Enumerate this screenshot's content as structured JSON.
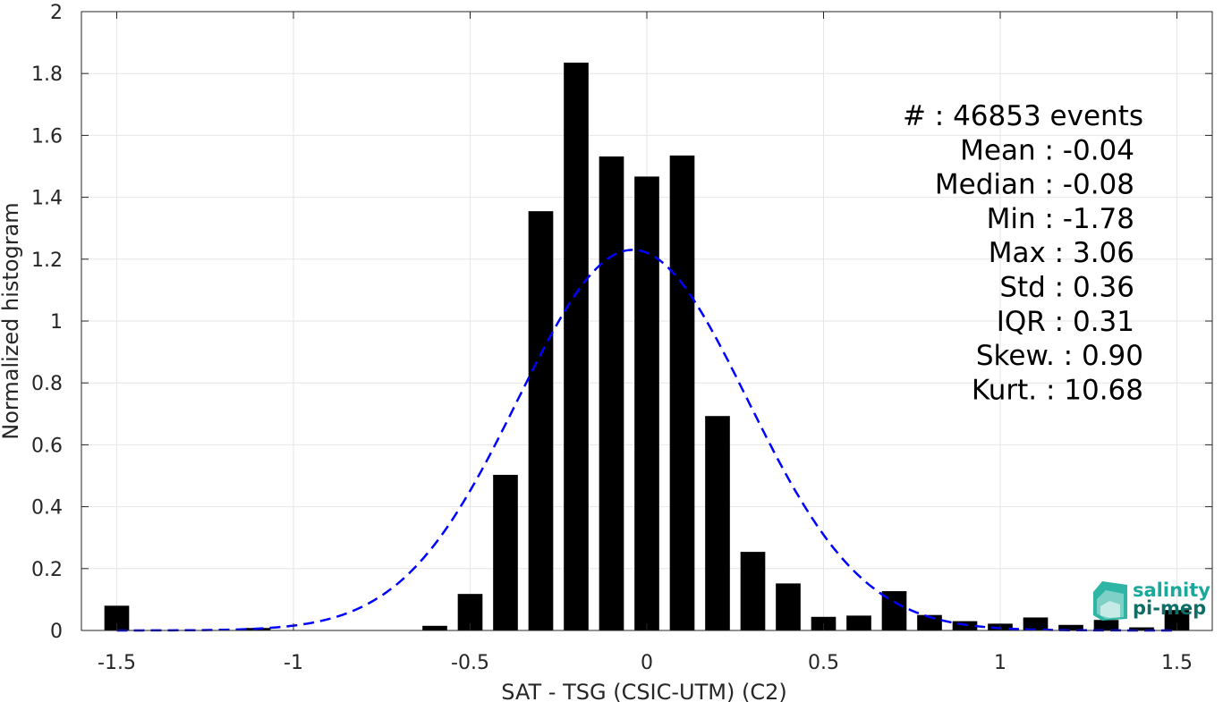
{
  "chart_data": {
    "type": "bar",
    "xlabel": "SAT - TSG (CSIC-UTM) (C2)",
    "ylabel": "Normalized histogram",
    "xlim": [
      -1.6,
      1.6
    ],
    "ylim": [
      0,
      2
    ],
    "grid": true,
    "x_ticks": [
      -1.5,
      -1,
      -0.5,
      0,
      0.5,
      1,
      1.5
    ],
    "x_tick_labels": [
      "-1.5",
      "-1",
      "-0.5",
      "0",
      "0.5",
      "1",
      "1.5"
    ],
    "y_ticks": [
      0,
      0.2,
      0.4,
      0.6,
      0.8,
      1,
      1.2,
      1.4,
      1.6,
      1.8,
      2
    ],
    "y_tick_labels": [
      "0",
      "0.2",
      "0.4",
      "0.6",
      "0.8",
      "1",
      "1.2",
      "1.4",
      "1.6",
      "1.8",
      "2"
    ],
    "bar_width": 0.07,
    "bars": [
      {
        "x": -1.5,
        "y": 0.08
      },
      {
        "x": -1.4,
        "y": 0.0
      },
      {
        "x": -1.3,
        "y": 0.0
      },
      {
        "x": -1.2,
        "y": 0.0
      },
      {
        "x": -1.1,
        "y": 0.008
      },
      {
        "x": -1.0,
        "y": 0.0
      },
      {
        "x": -0.9,
        "y": 0.0
      },
      {
        "x": -0.8,
        "y": 0.0
      },
      {
        "x": -0.7,
        "y": 0.0
      },
      {
        "x": -0.6,
        "y": 0.015
      },
      {
        "x": -0.5,
        "y": 0.118
      },
      {
        "x": -0.4,
        "y": 0.503
      },
      {
        "x": -0.3,
        "y": 1.355
      },
      {
        "x": -0.2,
        "y": 1.835
      },
      {
        "x": -0.1,
        "y": 1.532
      },
      {
        "x": 0.0,
        "y": 1.467
      },
      {
        "x": 0.1,
        "y": 1.535
      },
      {
        "x": 0.2,
        "y": 0.693
      },
      {
        "x": 0.3,
        "y": 0.254
      },
      {
        "x": 0.4,
        "y": 0.152
      },
      {
        "x": 0.5,
        "y": 0.044
      },
      {
        "x": 0.6,
        "y": 0.048
      },
      {
        "x": 0.7,
        "y": 0.127
      },
      {
        "x": 0.8,
        "y": 0.05
      },
      {
        "x": 0.9,
        "y": 0.03
      },
      {
        "x": 1.0,
        "y": 0.022
      },
      {
        "x": 1.1,
        "y": 0.042
      },
      {
        "x": 1.2,
        "y": 0.018
      },
      {
        "x": 1.3,
        "y": 0.034
      },
      {
        "x": 1.4,
        "y": 0.01
      },
      {
        "x": 1.5,
        "y": 0.066
      }
    ],
    "fit_curve": {
      "type": "normal",
      "mean": -0.04,
      "std": 0.325,
      "peak": 1.23,
      "x_range": [
        -1.5,
        1.5
      ],
      "color": "#0000ff",
      "style": "dashed"
    },
    "bar_color": "#000000",
    "stats": [
      "#  : 46853 events",
      "Mean : -0.04",
      "Median : -0.08",
      "Min : -1.78",
      "Max : 3.06",
      "Std : 0.36",
      "IQR : 0.31",
      "Skew. : 0.90",
      "Kurt. : 10.68"
    ]
  },
  "logo": {
    "line1": "salinity",
    "line2": "pi-mep",
    "color1": "#1aa89b",
    "color2": "#0f6e66"
  }
}
